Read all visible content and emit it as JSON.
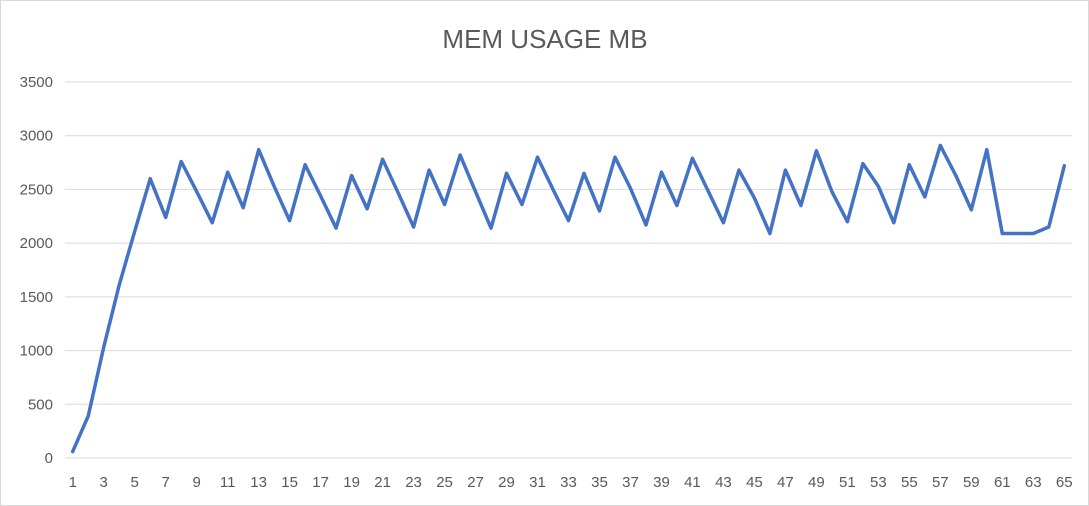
{
  "chart_data": {
    "type": "line",
    "title": "MEM USAGE MB",
    "xlabel": "",
    "ylabel": "",
    "ylim": [
      0,
      3500
    ],
    "y_ticks": [
      0,
      500,
      1000,
      1500,
      2000,
      2500,
      3000,
      3500
    ],
    "x_tick_labels": [
      1,
      3,
      5,
      7,
      9,
      11,
      13,
      15,
      17,
      19,
      21,
      23,
      25,
      27,
      29,
      31,
      33,
      35,
      37,
      39,
      41,
      43,
      45,
      47,
      49,
      51,
      53,
      55,
      57,
      59,
      61,
      63,
      65
    ],
    "grid": true,
    "legend": "none",
    "line_color": "#4472c4",
    "x": [
      1,
      2,
      3,
      4,
      5,
      6,
      7,
      8,
      9,
      10,
      11,
      12,
      13,
      14,
      15,
      16,
      17,
      18,
      19,
      20,
      21,
      22,
      23,
      24,
      25,
      26,
      27,
      28,
      29,
      30,
      31,
      32,
      33,
      34,
      35,
      36,
      37,
      38,
      39,
      40,
      41,
      42,
      43,
      44,
      45,
      46,
      47,
      48,
      49,
      50,
      51,
      52,
      53,
      54,
      55,
      56,
      57,
      58,
      59,
      60,
      61,
      62,
      63,
      64,
      65
    ],
    "series": [
      {
        "values": [
          60,
          390,
          1030,
          1610,
          2110,
          2600,
          2240,
          2760,
          2480,
          2190,
          2660,
          2330,
          2870,
          2530,
          2210,
          2730,
          2440,
          2140,
          2630,
          2320,
          2780,
          2470,
          2150,
          2680,
          2360,
          2820,
          2480,
          2140,
          2650,
          2360,
          2800,
          2500,
          2210,
          2650,
          2300,
          2800,
          2510,
          2170,
          2660,
          2350,
          2790,
          2490,
          2190,
          2680,
          2420,
          2090,
          2680,
          2350,
          2860,
          2480,
          2200,
          2740,
          2530,
          2190,
          2730,
          2430,
          2910,
          2630,
          2310,
          2870,
          2090,
          2090,
          2090,
          2150,
          2720
        ]
      }
    ]
  }
}
